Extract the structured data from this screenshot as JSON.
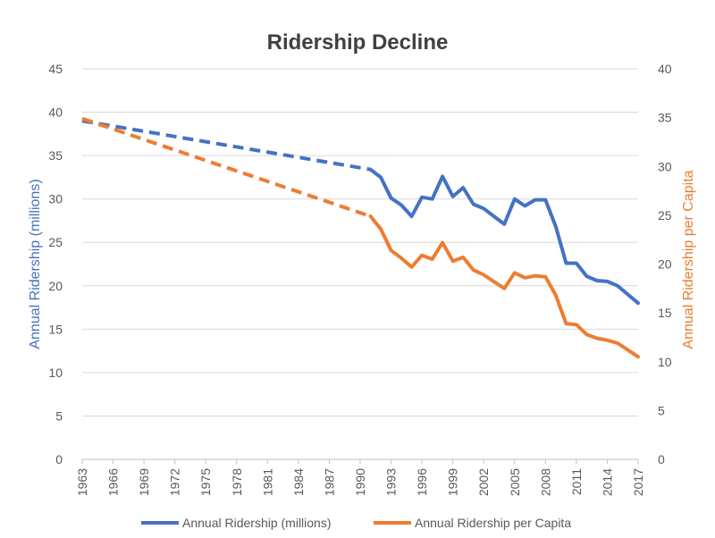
{
  "chart_data": {
    "type": "line",
    "title": "Ridership Decline",
    "xlabel": "",
    "ylabel_left": "Annual Ridership (millions)",
    "ylabel_right": "Annual Ridership per Capita",
    "ylim_left": [
      0,
      45
    ],
    "ylim_right": [
      0,
      40
    ],
    "left_ticks": [
      "0",
      "5",
      "10",
      "15",
      "20",
      "25",
      "30",
      "35",
      "40",
      "45"
    ],
    "right_ticks": [
      "0",
      "5",
      "10",
      "15",
      "20",
      "25",
      "30",
      "35",
      "40"
    ],
    "x_range": [
      1963,
      2017
    ],
    "x_ticks": [
      "1963",
      "1966",
      "1969",
      "1972",
      "1975",
      "1978",
      "1981",
      "1984",
      "1987",
      "1990",
      "1993",
      "1996",
      "1999",
      "2002",
      "2005",
      "2008",
      "2011",
      "2014",
      "2017"
    ],
    "grid": true,
    "legend_position": "bottom",
    "colors": {
      "blue": "#4472C4",
      "orange": "#ED7D31",
      "grid": "#D9D9D9",
      "tick": "#595959",
      "title": "#404040"
    },
    "series": [
      {
        "name": "Annual Ridership (millions)",
        "axis": "left",
        "color": "#4472C4",
        "dashed_segment": {
          "x": [
            1963,
            1991
          ],
          "y": [
            39.0,
            33.4
          ]
        },
        "x": [
          1991,
          1992,
          1993,
          1994,
          1995,
          1996,
          1997,
          1998,
          1999,
          2000,
          2001,
          2002,
          2003,
          2004,
          2005,
          2006,
          2007,
          2008,
          2009,
          2010,
          2011,
          2012,
          2013,
          2014,
          2015,
          2016,
          2017
        ],
        "y": [
          33.4,
          32.5,
          30.1,
          29.3,
          28.0,
          30.2,
          30.0,
          32.6,
          30.3,
          31.3,
          29.4,
          28.9,
          28.0,
          27.1,
          30.0,
          29.2,
          29.9,
          29.9,
          26.8,
          22.6,
          22.6,
          21.1,
          20.6,
          20.5,
          20.0,
          19.0,
          18.0
        ]
      },
      {
        "name": "Annual Ridership per Capita",
        "axis": "right",
        "color": "#ED7D31",
        "dashed_segment": {
          "x": [
            1963,
            1991
          ],
          "y": [
            34.9,
            24.9
          ]
        },
        "x": [
          1991,
          1992,
          1993,
          1994,
          1995,
          1996,
          1997,
          1998,
          1999,
          2000,
          2001,
          2002,
          2003,
          2004,
          2005,
          2006,
          2007,
          2008,
          2009,
          2010,
          2011,
          2012,
          2013,
          2014,
          2015,
          2016,
          2017
        ],
        "y": [
          24.9,
          23.6,
          21.4,
          20.6,
          19.7,
          20.9,
          20.5,
          22.2,
          20.3,
          20.7,
          19.4,
          18.9,
          18.2,
          17.5,
          19.1,
          18.6,
          18.8,
          18.7,
          16.8,
          13.9,
          13.8,
          12.8,
          12.4,
          12.2,
          11.9,
          11.2,
          10.5
        ]
      }
    ]
  }
}
